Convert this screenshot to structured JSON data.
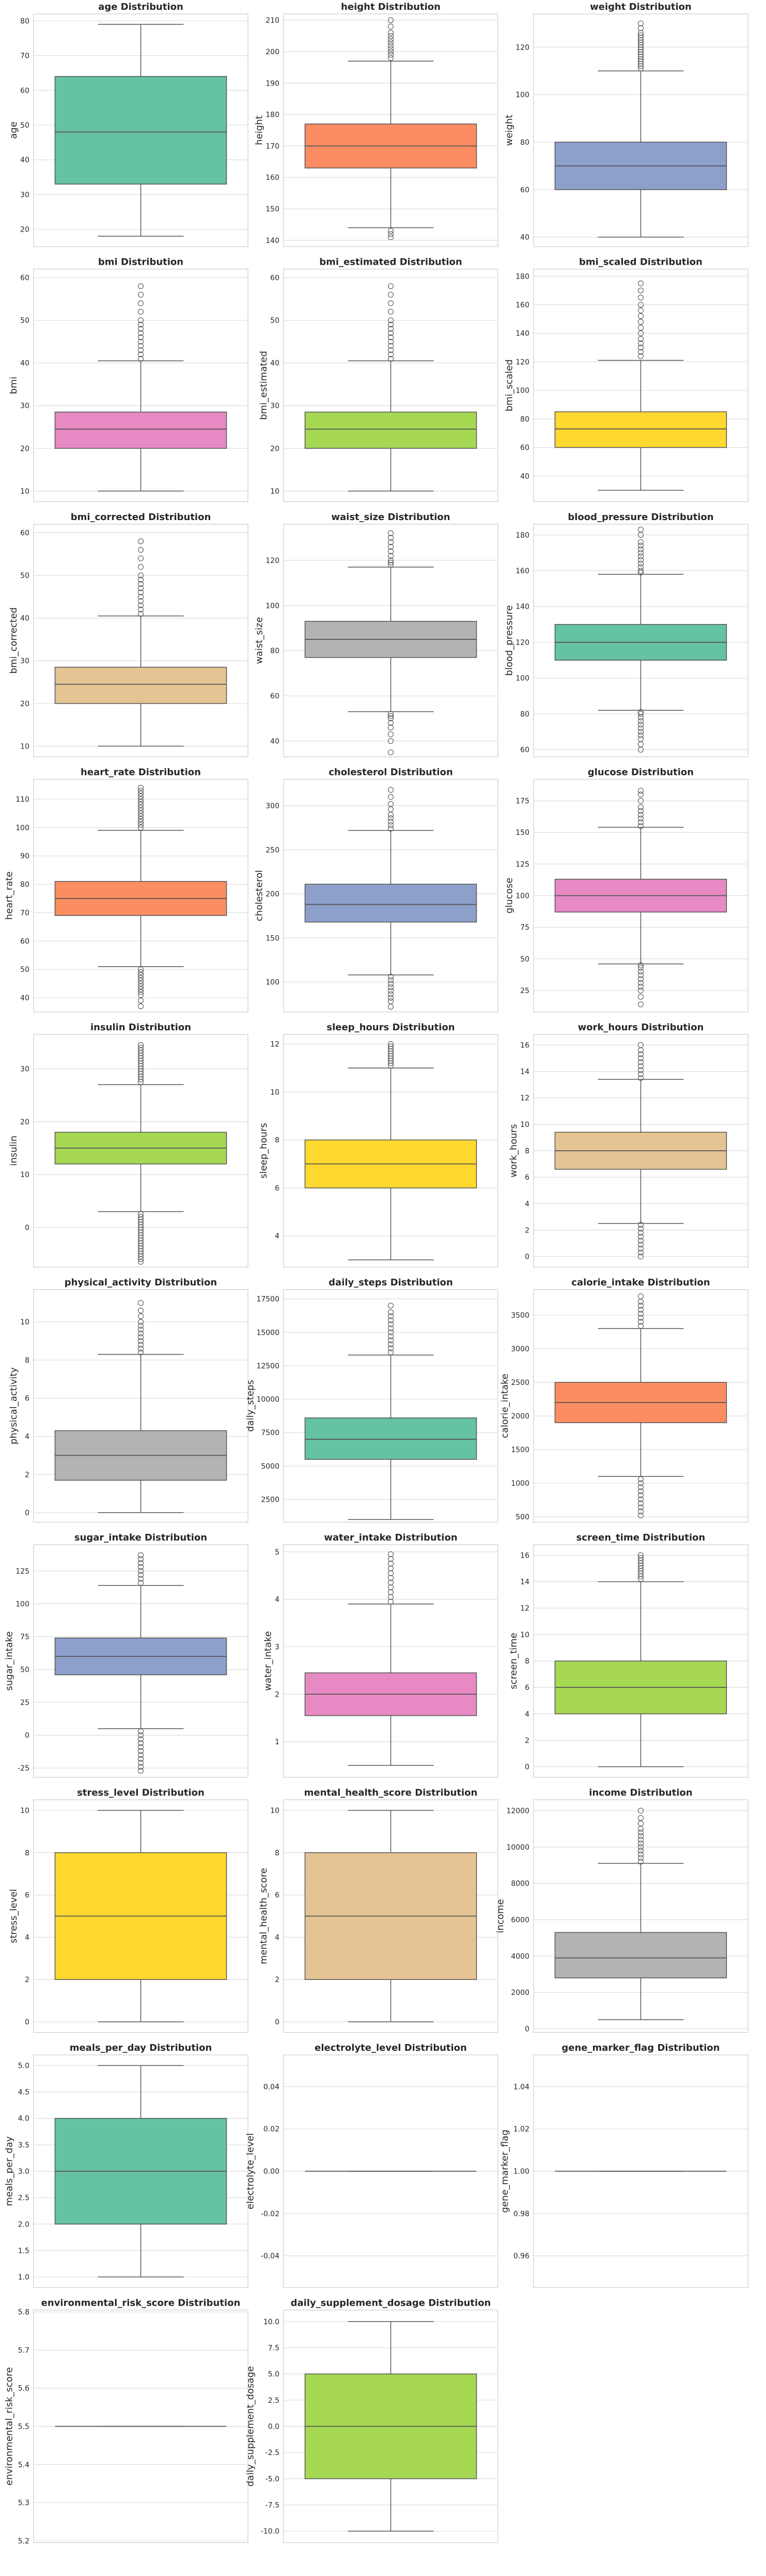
{
  "figure": {
    "rows": 10,
    "cols": 3,
    "palette": [
      "#66c2a5",
      "#fc8d62",
      "#8da0cb",
      "#e78ac3",
      "#a6d854",
      "#ffd92f",
      "#e5c494",
      "#b3b3b3"
    ]
  },
  "chart_data": [
    {
      "type": "box",
      "title": "age Distribution",
      "ylabel": "age",
      "ylim": [
        15,
        82
      ],
      "ticks": [
        20,
        30,
        40,
        50,
        60,
        70,
        80
      ],
      "tick_labels": [
        "20",
        "30",
        "40",
        "50",
        "60",
        "70",
        "80"
      ],
      "whisker_low": 18,
      "q1": 33,
      "median": 48,
      "q3": 64,
      "whisker_high": 79,
      "outliers": []
    },
    {
      "type": "box",
      "title": "height Distribution",
      "ylabel": "height",
      "ylim": [
        138,
        212
      ],
      "ticks": [
        140,
        150,
        160,
        170,
        180,
        190,
        200,
        210
      ],
      "tick_labels": [
        "140",
        "150",
        "160",
        "170",
        "180",
        "190",
        "200",
        "210"
      ],
      "whisker_low": 144,
      "q1": 163,
      "median": 170,
      "q3": 177,
      "whisker_high": 197,
      "outliers": [
        141,
        142,
        143,
        198,
        199,
        200,
        201,
        202,
        203,
        204,
        205,
        206,
        208,
        210
      ]
    },
    {
      "type": "box",
      "title": "weight Distribution",
      "ylabel": "weight",
      "ylim": [
        36,
        134
      ],
      "ticks": [
        40,
        60,
        80,
        100,
        120
      ],
      "tick_labels": [
        "40",
        "60",
        "80",
        "100",
        "120"
      ],
      "whisker_low": 40,
      "q1": 60,
      "median": 70,
      "q3": 80,
      "whisker_high": 110,
      "outliers": [
        111,
        112,
        113,
        114,
        115,
        116,
        117,
        118,
        119,
        120,
        121,
        122,
        123,
        124,
        125,
        126,
        128,
        130
      ]
    },
    {
      "type": "box",
      "title": "bmi Distribution",
      "ylabel": "bmi",
      "ylim": [
        7.5,
        62
      ],
      "ticks": [
        10,
        20,
        30,
        40,
        50,
        60
      ],
      "tick_labels": [
        "10",
        "20",
        "30",
        "40",
        "50",
        "60"
      ],
      "whisker_low": 10,
      "q1": 20,
      "median": 24.5,
      "q3": 28.5,
      "whisker_high": 40.5,
      "outliers": [
        41,
        42,
        43,
        44,
        45,
        46,
        47,
        48,
        49,
        50,
        52,
        54,
        56,
        58
      ]
    },
    {
      "type": "box",
      "title": "bmi_estimated Distribution",
      "ylabel": "bmi_estimated",
      "ylim": [
        7.5,
        62
      ],
      "ticks": [
        10,
        20,
        30,
        40,
        50,
        60
      ],
      "tick_labels": [
        "10",
        "20",
        "30",
        "40",
        "50",
        "60"
      ],
      "whisker_low": 10,
      "q1": 20,
      "median": 24.5,
      "q3": 28.5,
      "whisker_high": 40.5,
      "outliers": [
        41,
        42,
        43,
        44,
        45,
        46,
        47,
        48,
        49,
        50,
        52,
        54,
        56,
        58
      ]
    },
    {
      "type": "box",
      "title": "bmi_scaled Distribution",
      "ylabel": "bmi_scaled",
      "ylim": [
        22,
        185
      ],
      "ticks": [
        40,
        60,
        80,
        100,
        120,
        140,
        160,
        180
      ],
      "tick_labels": [
        "40",
        "60",
        "80",
        "100",
        "120",
        "140",
        "160",
        "180"
      ],
      "whisker_low": 30,
      "q1": 60,
      "median": 73,
      "q3": 85,
      "whisker_high": 121,
      "outliers": [
        124,
        127,
        130,
        133,
        136,
        140,
        144,
        148,
        152,
        156,
        160,
        165,
        170,
        175
      ]
    },
    {
      "type": "box",
      "title": "bmi_corrected Distribution",
      "ylabel": "bmi_corrected",
      "ylim": [
        7.5,
        62
      ],
      "ticks": [
        10,
        20,
        30,
        40,
        50,
        60
      ],
      "tick_labels": [
        "10",
        "20",
        "30",
        "40",
        "50",
        "60"
      ],
      "whisker_low": 10,
      "q1": 20,
      "median": 24.5,
      "q3": 28.5,
      "whisker_high": 40.5,
      "outliers": [
        41,
        42,
        43,
        44,
        45,
        46,
        47,
        48,
        49,
        50,
        52,
        54,
        56,
        58
      ]
    },
    {
      "type": "box",
      "title": "waist_size Distribution",
      "ylabel": "waist_size",
      "ylim": [
        33,
        136
      ],
      "ticks": [
        40,
        60,
        80,
        100,
        120
      ],
      "tick_labels": [
        "40",
        "60",
        "80",
        "100",
        "120"
      ],
      "whisker_low": 53,
      "q1": 77,
      "median": 85,
      "q3": 93,
      "whisker_high": 117,
      "outliers": [
        35,
        40,
        43,
        46,
        48,
        50,
        51,
        52,
        118,
        119,
        120,
        122,
        124,
        126,
        128,
        130,
        132
      ]
    },
    {
      "type": "box",
      "title": "blood_pressure Distribution",
      "ylabel": "blood_pressure",
      "ylim": [
        56,
        186
      ],
      "ticks": [
        60,
        80,
        100,
        120,
        140,
        160,
        180
      ],
      "tick_labels": [
        "60",
        "80",
        "100",
        "120",
        "140",
        "160",
        "180"
      ],
      "whisker_low": 82,
      "q1": 110,
      "median": 120,
      "q3": 130,
      "whisker_high": 158,
      "outliers": [
        60,
        63,
        66,
        68,
        70,
        72,
        74,
        76,
        78,
        80,
        81,
        159,
        160,
        162,
        164,
        166,
        168,
        170,
        172,
        174,
        176,
        180,
        183
      ]
    },
    {
      "type": "box",
      "title": "heart_rate Distribution",
      "ylabel": "heart_rate",
      "ylim": [
        35,
        117
      ],
      "ticks": [
        40,
        50,
        60,
        70,
        80,
        90,
        100,
        110
      ],
      "tick_labels": [
        "40",
        "50",
        "60",
        "70",
        "80",
        "90",
        "100",
        "110"
      ],
      "whisker_low": 51,
      "q1": 69,
      "median": 75,
      "q3": 81,
      "whisker_high": 99,
      "outliers": [
        37,
        39,
        41,
        42,
        43,
        44,
        45,
        46,
        47,
        48,
        49,
        50,
        100,
        101,
        102,
        103,
        104,
        105,
        106,
        107,
        108,
        109,
        110,
        111,
        112,
        113,
        114
      ]
    },
    {
      "type": "box",
      "title": "cholesterol Distribution",
      "ylabel": "cholesterol",
      "ylim": [
        66,
        330
      ],
      "ticks": [
        100,
        150,
        200,
        250,
        300
      ],
      "tick_labels": [
        "100",
        "150",
        "200",
        "250",
        "300"
      ],
      "whisker_low": 108,
      "q1": 168,
      "median": 188,
      "q3": 211,
      "whisker_high": 272,
      "outliers": [
        72,
        78,
        82,
        86,
        90,
        94,
        98,
        102,
        106,
        274,
        278,
        282,
        286,
        290,
        296,
        302,
        310,
        318
      ]
    },
    {
      "type": "box",
      "title": "glucose Distribution",
      "ylabel": "glucose",
      "ylim": [
        8,
        192
      ],
      "ticks": [
        25,
        50,
        75,
        100,
        125,
        150,
        175
      ],
      "tick_labels": [
        "25",
        "50",
        "75",
        "100",
        "125",
        "150",
        "175"
      ],
      "whisker_low": 46,
      "q1": 87,
      "median": 100,
      "q3": 113,
      "whisker_high": 154,
      "outliers": [
        14,
        20,
        25,
        28,
        31,
        34,
        37,
        40,
        43,
        45,
        155,
        158,
        161,
        164,
        167,
        170,
        175,
        180,
        183
      ]
    },
    {
      "type": "box",
      "title": "insulin Distribution",
      "ylabel": "insulin",
      "ylim": [
        -7.5,
        36.5
      ],
      "ticks": [
        0,
        10,
        20,
        30
      ],
      "tick_labels": [
        "0",
        "10",
        "20",
        "30"
      ],
      "whisker_low": 3,
      "q1": 12,
      "median": 15,
      "q3": 18,
      "whisker_high": 27,
      "outliers": [
        -6.5,
        -6,
        -5.5,
        -5,
        -4.5,
        -4,
        -3.5,
        -3,
        -2.5,
        -2,
        -1.5,
        -1,
        -0.5,
        0,
        0.5,
        1,
        1.5,
        2,
        2.5,
        27.5,
        28,
        28.5,
        29,
        29.5,
        30,
        30.5,
        31,
        31.5,
        32,
        32.5,
        33,
        33.5,
        34,
        34.5
      ]
    },
    {
      "type": "box",
      "title": "sleep_hours Distribution",
      "ylabel": "sleep_hours",
      "ylim": [
        2.7,
        12.4
      ],
      "ticks": [
        4,
        6,
        8,
        10,
        12
      ],
      "tick_labels": [
        "4",
        "6",
        "8",
        "10",
        "12"
      ],
      "whisker_low": 3,
      "q1": 6,
      "median": 7,
      "q3": 8,
      "whisker_high": 11,
      "outliers": [
        11.1,
        11.2,
        11.3,
        11.4,
        11.5,
        11.6,
        11.7,
        11.8,
        11.9,
        12
      ]
    },
    {
      "type": "box",
      "title": "work_hours Distribution",
      "ylabel": "work_hours",
      "ylim": [
        -0.8,
        16.8
      ],
      "ticks": [
        0,
        2,
        4,
        6,
        8,
        10,
        12,
        14,
        16
      ],
      "tick_labels": [
        "0",
        "2",
        "4",
        "6",
        "8",
        "10",
        "12",
        "14",
        "16"
      ],
      "whisker_low": 2.5,
      "q1": 6.6,
      "median": 8,
      "q3": 9.4,
      "whisker_high": 13.4,
      "outliers": [
        0,
        0.3,
        0.6,
        0.9,
        1.2,
        1.5,
        1.8,
        2.1,
        2.4,
        13.5,
        13.8,
        14.1,
        14.4,
        14.7,
        15,
        15.3,
        15.6,
        16
      ]
    },
    {
      "type": "box",
      "title": "physical_activity Distribution",
      "ylabel": "physical_activity",
      "ylim": [
        -0.5,
        11.7
      ],
      "ticks": [
        0,
        2,
        4,
        6,
        8,
        10
      ],
      "tick_labels": [
        "0",
        "2",
        "4",
        "6",
        "8",
        "10"
      ],
      "whisker_low": 0,
      "q1": 1.7,
      "median": 3,
      "q3": 4.3,
      "whisker_high": 8.3,
      "outliers": [
        8.4,
        8.6,
        8.8,
        9,
        9.2,
        9.4,
        9.6,
        9.8,
        10,
        10.3,
        10.6,
        11
      ]
    },
    {
      "type": "box",
      "title": "daily_steps Distribution",
      "ylabel": "daily_steps",
      "ylim": [
        800,
        18200
      ],
      "ticks": [
        2500,
        5000,
        7500,
        10000,
        12500,
        15000,
        17500
      ],
      "tick_labels": [
        "2500",
        "5000",
        "7500",
        "10000",
        "12500",
        "15000",
        "17500"
      ],
      "whisker_low": 1000,
      "q1": 5500,
      "median": 7000,
      "q3": 8600,
      "whisker_high": 13300,
      "outliers": [
        13500,
        13800,
        14100,
        14400,
        14700,
        15000,
        15300,
        15600,
        15900,
        16200,
        16500,
        17000
      ]
    },
    {
      "type": "box",
      "title": "calorie_intake Distribution",
      "ylabel": "calorie_intake",
      "ylim": [
        420,
        3880
      ],
      "ticks": [
        500,
        1000,
        1500,
        2000,
        2500,
        3000,
        3500
      ],
      "tick_labels": [
        "500",
        "1000",
        "1500",
        "2000",
        "2500",
        "3000",
        "3500"
      ],
      "whisker_low": 1100,
      "q1": 1900,
      "median": 2200,
      "q3": 2500,
      "whisker_high": 3300,
      "outliers": [
        520,
        580,
        640,
        700,
        760,
        820,
        880,
        940,
        1000,
        1060,
        3340,
        3400,
        3460,
        3520,
        3580,
        3640,
        3700,
        3780
      ]
    },
    {
      "type": "box",
      "title": "sugar_intake Distribution",
      "ylabel": "sugar_intake",
      "ylim": [
        -32,
        145
      ],
      "ticks": [
        -25,
        0,
        25,
        50,
        75,
        100,
        125
      ],
      "tick_labels": [
        "-25",
        "0",
        "25",
        "50",
        "75",
        "100",
        "125"
      ],
      "whisker_low": 5,
      "q1": 46,
      "median": 60,
      "q3": 74,
      "whisker_high": 114,
      "outliers": [
        -27,
        -24,
        -21,
        -18,
        -15,
        -12,
        -9,
        -6,
        -3,
        0,
        3,
        116,
        119,
        122,
        125,
        128,
        131,
        134,
        137
      ]
    },
    {
      "type": "box",
      "title": "water_intake Distribution",
      "ylabel": "water_intake",
      "ylim": [
        0.25,
        5.15
      ],
      "ticks": [
        1,
        2,
        3,
        4,
        5
      ],
      "tick_labels": [
        "1",
        "2",
        "3",
        "4",
        "5"
      ],
      "whisker_low": 0.5,
      "q1": 1.55,
      "median": 2,
      "q3": 2.45,
      "whisker_high": 3.9,
      "outliers": [
        3.95,
        4.05,
        4.15,
        4.25,
        4.35,
        4.45,
        4.55,
        4.65,
        4.75,
        4.85,
        4.95
      ]
    },
    {
      "type": "box",
      "title": "screen_time Distribution",
      "ylabel": "screen_time",
      "ylim": [
        -0.8,
        16.8
      ],
      "ticks": [
        0,
        2,
        4,
        6,
        8,
        10,
        12,
        14,
        16
      ],
      "tick_labels": [
        "0",
        "2",
        "4",
        "6",
        "8",
        "10",
        "12",
        "14",
        "16"
      ],
      "whisker_low": 0,
      "q1": 4,
      "median": 6,
      "q3": 8,
      "whisker_high": 14,
      "outliers": [
        14.2,
        14.4,
        14.6,
        14.8,
        15,
        15.2,
        15.4,
        15.6,
        15.8,
        16
      ]
    },
    {
      "type": "box",
      "title": "stress_level Distribution",
      "ylabel": "stress_level",
      "ylim": [
        -0.5,
        10.5
      ],
      "ticks": [
        0,
        2,
        4,
        6,
        8,
        10
      ],
      "tick_labels": [
        "0",
        "2",
        "4",
        "6",
        "8",
        "10"
      ],
      "whisker_low": 0,
      "q1": 2,
      "median": 5,
      "q3": 8,
      "whisker_high": 10,
      "outliers": []
    },
    {
      "type": "box",
      "title": "mental_health_score Distribution",
      "ylabel": "mental_health_score",
      "ylim": [
        -0.5,
        10.5
      ],
      "ticks": [
        0,
        2,
        4,
        6,
        8,
        10
      ],
      "tick_labels": [
        "0",
        "2",
        "4",
        "6",
        "8",
        "10"
      ],
      "whisker_low": 0,
      "q1": 2,
      "median": 5,
      "q3": 8,
      "whisker_high": 10,
      "outliers": []
    },
    {
      "type": "box",
      "title": "income Distribution",
      "ylabel": "income",
      "ylim": [
        -200,
        12600
      ],
      "ticks": [
        0,
        2000,
        4000,
        6000,
        8000,
        10000,
        12000
      ],
      "tick_labels": [
        "0",
        "2000",
        "4000",
        "6000",
        "8000",
        "10000",
        "12000"
      ],
      "whisker_low": 500,
      "q1": 2800,
      "median": 3900,
      "q3": 5300,
      "whisker_high": 9100,
      "outliers": [
        9200,
        9400,
        9600,
        9800,
        10000,
        10200,
        10400,
        10600,
        10800,
        11000,
        11300,
        11600,
        12000
      ]
    },
    {
      "type": "box",
      "title": "meals_per_day Distribution",
      "ylabel": "meals_per_day",
      "ylim": [
        0.8,
        5.2
      ],
      "ticks": [
        1,
        1.5,
        2,
        2.5,
        3,
        3.5,
        4,
        4.5,
        5
      ],
      "tick_labels": [
        "1.0",
        "1.5",
        "2.0",
        "2.5",
        "3.0",
        "3.5",
        "4.0",
        "4.5",
        "5.0"
      ],
      "whisker_low": 1,
      "q1": 2,
      "median": 3,
      "q3": 4,
      "whisker_high": 5,
      "outliers": []
    },
    {
      "type": "box",
      "title": "electrolyte_level Distribution",
      "ylabel": "electrolyte_level",
      "ylim": [
        -0.055,
        0.055
      ],
      "ticks": [
        -0.04,
        -0.02,
        0,
        0.02,
        0.04
      ],
      "tick_labels": [
        "-0.04",
        "-0.02",
        "0.00",
        "0.02",
        "0.04"
      ],
      "whisker_low": 0,
      "q1": 0,
      "median": 0,
      "q3": 0,
      "whisker_high": 0,
      "outliers": []
    },
    {
      "type": "box",
      "title": "gene_marker_flag Distribution",
      "ylabel": "gene_marker_flag",
      "ylim": [
        0.945,
        1.055
      ],
      "ticks": [
        0.96,
        0.98,
        1,
        1.02,
        1.04
      ],
      "tick_labels": [
        "0.96",
        "0.98",
        "1.00",
        "1.02",
        "1.04"
      ],
      "whisker_low": 1,
      "q1": 1,
      "median": 1,
      "q3": 1,
      "whisker_high": 1,
      "outliers": []
    },
    {
      "type": "box",
      "title": "environmental_risk_score Distribution",
      "ylabel": "environmental_risk_score",
      "ylim": [
        5.195,
        5.805
      ],
      "ticks": [
        5.2,
        5.3,
        5.4,
        5.5,
        5.6,
        5.7,
        5.8
      ],
      "tick_labels": [
        "5.2",
        "5.3",
        "5.4",
        "5.5",
        "5.6",
        "5.7",
        "5.8"
      ],
      "whisker_low": 5.5,
      "q1": 5.5,
      "median": 5.5,
      "q3": 5.5,
      "whisker_high": 5.5,
      "outliers": []
    },
    {
      "type": "box",
      "title": "daily_supplement_dosage Distribution",
      "ylabel": "daily_supplement_dosage",
      "ylim": [
        -11.1,
        11.1
      ],
      "ticks": [
        -10,
        -7.5,
        -5,
        -2.5,
        0,
        2.5,
        5,
        7.5,
        10
      ],
      "tick_labels": [
        "-10.0",
        "-7.5",
        "-5.0",
        "-2.5",
        "0.0",
        "2.5",
        "5.0",
        "7.5",
        "10.0"
      ],
      "whisker_low": -10,
      "q1": -5,
      "median": 0,
      "q3": 5,
      "whisker_high": 10,
      "outliers": []
    }
  ]
}
